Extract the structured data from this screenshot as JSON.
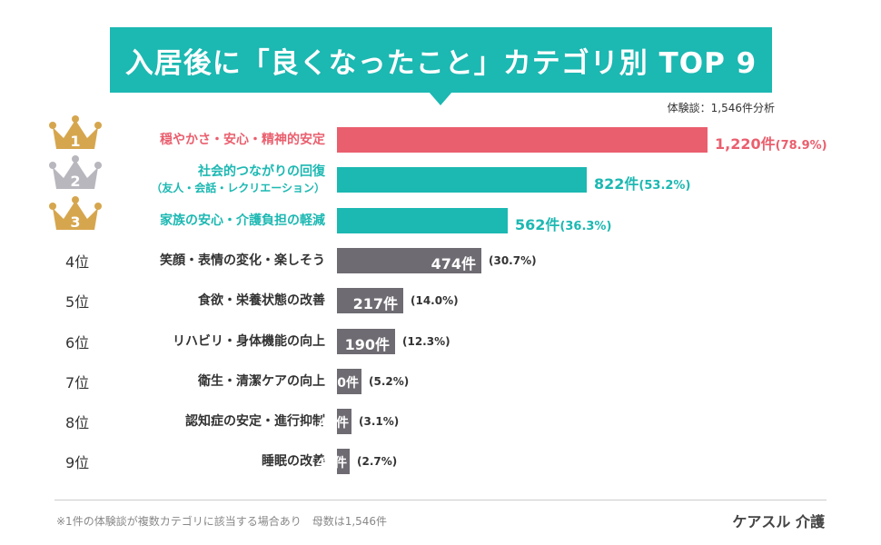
{
  "header": {
    "title": "入居後に「良くなったこと」カテゴリ別 TOP 9",
    "sample_note": "体験談：1,546件分析"
  },
  "colors": {
    "title_bg": "#1cb8b2",
    "rank1": "#ea5f6e",
    "teal": "#1cb8b2",
    "gray": "#6f6b72",
    "gold": "#d6a64e",
    "silver": "#b7b7bd"
  },
  "chart_data": {
    "type": "bar",
    "orientation": "horizontal",
    "title": "入居後に「良くなったこと」カテゴリ別 TOP 9",
    "unit": "件",
    "categories": [
      "穏やかさ・安心・精神的安定",
      "社会的つながりの回復（友人・会話・レクリエーション）",
      "家族の安心・介護負担の軽減",
      "笑顔・表情の変化・楽しそう",
      "食欲・栄養状態の改善",
      "リハビリ・身体機能の向上",
      "衛生・清潔ケアの向上",
      "認知症の安定・進行抑制",
      "睡眠の改善"
    ],
    "values": [
      1220,
      822,
      562,
      474,
      217,
      190,
      80,
      48,
      41
    ],
    "percentages": [
      78.9,
      53.2,
      36.3,
      30.7,
      14.0,
      12.3,
      5.2,
      3.1,
      2.7
    ],
    "xlim": [
      0,
      1220
    ],
    "grid": false,
    "legend": "none"
  },
  "rows": [
    {
      "rank": "1",
      "label": "穏やかさ・安心・精神的安定",
      "sub": "",
      "count": "1,220件",
      "pct": "(78.9%)"
    },
    {
      "rank": "2",
      "label": "社会的つながりの回復",
      "sub": "（友人・会話・レクリエーション）",
      "count": "822件",
      "pct": "(53.2%)"
    },
    {
      "rank": "3",
      "label": "家族の安心・介護負担の軽減",
      "sub": "",
      "count": "562件",
      "pct": "(36.3%)"
    },
    {
      "rank": "4位",
      "label": "笑顔・表情の変化・楽しそう",
      "sub": "",
      "count": "474件",
      "pct": "(30.7%)"
    },
    {
      "rank": "5位",
      "label": "食欲・栄養状態の改善",
      "sub": "",
      "count": "217件",
      "pct": "(14.0%)"
    },
    {
      "rank": "6位",
      "label": "リハビリ・身体機能の向上",
      "sub": "",
      "count": "190件",
      "pct": "(12.3%)"
    },
    {
      "rank": "7位",
      "label": "衛生・清潔ケアの向上",
      "sub": "",
      "count": "80件",
      "pct": "(5.2%)"
    },
    {
      "rank": "8位",
      "label": "認知症の安定・進行抑制",
      "sub": "",
      "count": "48件",
      "pct": "(3.1%)"
    },
    {
      "rank": "9位",
      "label": "睡眠の改善",
      "sub": "",
      "count": "41件",
      "pct": "(2.7%)"
    }
  ],
  "footer": {
    "note": "※1件の体験談が複数カテゴリに該当する場合あり　母数は1,546件",
    "brand": "ケアスル 介護"
  }
}
